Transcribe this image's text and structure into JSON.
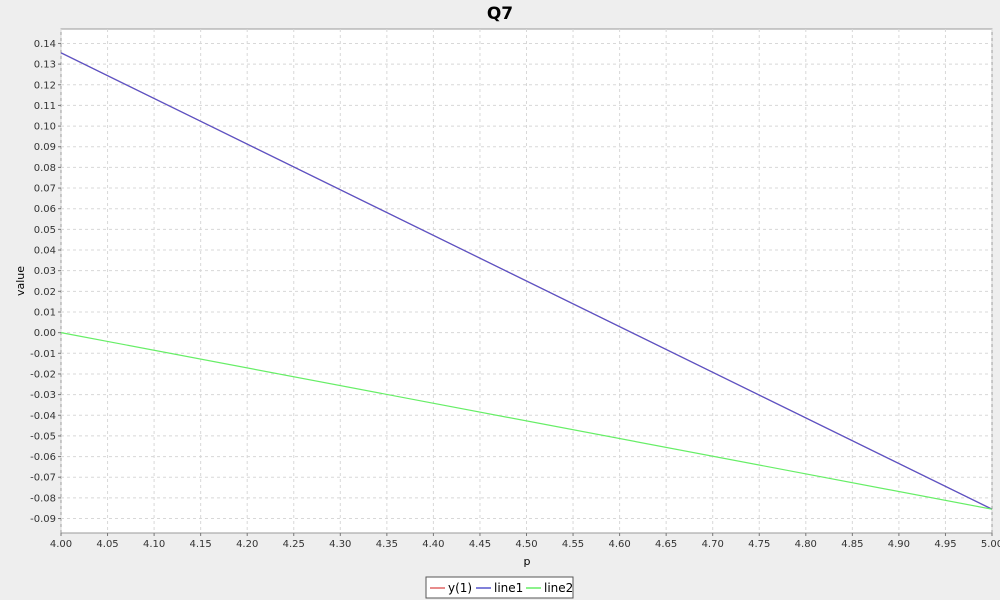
{
  "chart_data": {
    "type": "line",
    "title": "Q7",
    "xlabel": "p",
    "ylabel": "value",
    "xlim": [
      4.0,
      5.0
    ],
    "ylim": [
      -0.097,
      0.147
    ],
    "x_ticks": [
      "4.00",
      "4.05",
      "4.10",
      "4.15",
      "4.20",
      "4.25",
      "4.30",
      "4.35",
      "4.40",
      "4.45",
      "4.50",
      "4.55",
      "4.60",
      "4.65",
      "4.70",
      "4.75",
      "4.80",
      "4.85",
      "4.90",
      "4.95",
      "5.00"
    ],
    "y_ticks": [
      "0.14",
      "0.13",
      "0.12",
      "0.11",
      "0.10",
      "0.09",
      "0.08",
      "0.07",
      "0.06",
      "0.05",
      "0.04",
      "0.03",
      "0.02",
      "0.01",
      "0.00",
      "-0.01",
      "-0.02",
      "-0.03",
      "-0.04",
      "-0.05",
      "-0.06",
      "-0.07",
      "-0.08",
      "-0.09"
    ],
    "grid": true,
    "legend_position": "bottom",
    "series": [
      {
        "name": "y(1)",
        "color": "#e06666",
        "x": [
          4.0,
          5.0
        ],
        "y": [
          0.1355,
          -0.0855
        ]
      },
      {
        "name": "line1",
        "color": "#5555cc",
        "x": [
          4.0,
          5.0
        ],
        "y": [
          0.1355,
          -0.0855
        ]
      },
      {
        "name": "line2",
        "color": "#66ee66",
        "x": [
          4.0,
          5.0
        ],
        "y": [
          0.0,
          -0.0855
        ]
      }
    ]
  }
}
